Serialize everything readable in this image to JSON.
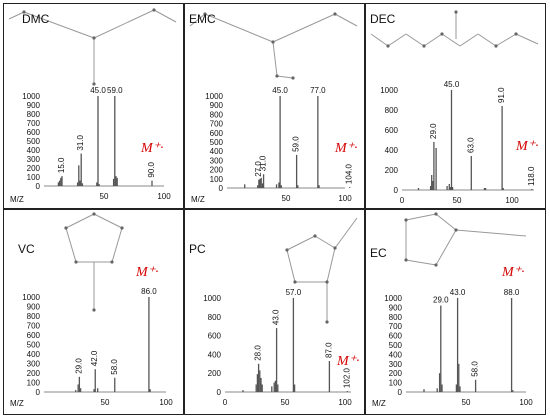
{
  "colors": {
    "bar": "#555555",
    "axis": "#888888",
    "structure": "#999999",
    "atom": "#666666",
    "mplus": "#d40000",
    "border": "#222222"
  },
  "chart_data": [
    {
      "type": "bar",
      "name": "DMC",
      "xlabel": "M/Z",
      "xlim": [
        0,
        100
      ],
      "ylim": [
        0,
        1000
      ],
      "xticks": [
        50,
        100
      ],
      "yticks": [
        0,
        100,
        200,
        300,
        400,
        500,
        600,
        700,
        800,
        900,
        1000
      ],
      "annotation": "M⁺·",
      "peaks": [
        {
          "mz": 12,
          "i": 40
        },
        {
          "mz": 13,
          "i": 60
        },
        {
          "mz": 14,
          "i": 90
        },
        {
          "mz": 15,
          "i": 110,
          "label": "15.0"
        },
        {
          "mz": 28,
          "i": 40
        },
        {
          "mz": 29,
          "i": 230
        },
        {
          "mz": 30,
          "i": 60
        },
        {
          "mz": 31,
          "i": 360,
          "label": "31.0"
        },
        {
          "mz": 32,
          "i": 30
        },
        {
          "mz": 44,
          "i": 40
        },
        {
          "mz": 45,
          "i": 1000,
          "label": "45.0"
        },
        {
          "mz": 46,
          "i": 20
        },
        {
          "mz": 58,
          "i": 80
        },
        {
          "mz": 59,
          "i": 1000,
          "label": "59.0"
        },
        {
          "mz": 60,
          "i": 110
        },
        {
          "mz": 61,
          "i": 90
        },
        {
          "mz": 90,
          "i": 60,
          "label": "90.0"
        }
      ]
    },
    {
      "type": "bar",
      "name": "EMC",
      "xlabel": "M/Z",
      "xlim": [
        0,
        100
      ],
      "ylim": [
        0,
        1000
      ],
      "xticks": [
        50,
        100
      ],
      "yticks": [
        0,
        100,
        200,
        300,
        400,
        500,
        600,
        700,
        800,
        900,
        1000
      ],
      "annotation": "M⁺·",
      "peaks": [
        {
          "mz": 15,
          "i": 40
        },
        {
          "mz": 26,
          "i": 30
        },
        {
          "mz": 27,
          "i": 90,
          "label": "27.0"
        },
        {
          "mz": 28,
          "i": 100
        },
        {
          "mz": 29,
          "i": 110
        },
        {
          "mz": 30,
          "i": 50
        },
        {
          "mz": 31,
          "i": 150,
          "label": "31.0"
        },
        {
          "mz": 42,
          "i": 40
        },
        {
          "mz": 44,
          "i": 60
        },
        {
          "mz": 45,
          "i": 1000,
          "label": "45.0"
        },
        {
          "mz": 46,
          "i": 30
        },
        {
          "mz": 59,
          "i": 360,
          "label": "59.0"
        },
        {
          "mz": 60,
          "i": 30
        },
        {
          "mz": 77,
          "i": 1000,
          "label": "77.0"
        },
        {
          "mz": 78,
          "i": 30
        },
        {
          "mz": 104,
          "i": 10,
          "label": "104.0"
        }
      ]
    },
    {
      "type": "bar",
      "name": "DEC",
      "xlabel": "",
      "xlim": [
        0,
        120
      ],
      "ylim": [
        0,
        1000
      ],
      "xticks": [
        0,
        50,
        100
      ],
      "yticks": [
        0,
        200,
        400,
        600,
        800,
        1000
      ],
      "annotation": "M⁺·",
      "peaks": [
        {
          "mz": 15,
          "i": 20
        },
        {
          "mz": 26,
          "i": 40
        },
        {
          "mz": 27,
          "i": 150
        },
        {
          "mz": 28,
          "i": 90
        },
        {
          "mz": 29,
          "i": 480,
          "label": "29.0"
        },
        {
          "mz": 31,
          "i": 420
        },
        {
          "mz": 41,
          "i": 40
        },
        {
          "mz": 43,
          "i": 60
        },
        {
          "mz": 44,
          "i": 30
        },
        {
          "mz": 45,
          "i": 1000,
          "label": "45.0"
        },
        {
          "mz": 46,
          "i": 30
        },
        {
          "mz": 63,
          "i": 340,
          "label": "63.0"
        },
        {
          "mz": 75,
          "i": 20
        },
        {
          "mz": 76,
          "i": 20
        },
        {
          "mz": 91,
          "i": 840,
          "label": "91.0"
        },
        {
          "mz": 92,
          "i": 20
        },
        {
          "mz": 118,
          "i": 10,
          "label": "118.0"
        }
      ]
    },
    {
      "type": "bar",
      "name": "VC",
      "xlabel": "M/Z",
      "xlim": [
        0,
        100
      ],
      "ylim": [
        0,
        1000
      ],
      "xticks": [
        50,
        100
      ],
      "yticks": [
        0,
        100,
        200,
        300,
        400,
        500,
        600,
        700,
        800,
        900,
        1000
      ],
      "annotation": "M⁺·",
      "peaks": [
        {
          "mz": 26,
          "i": 20
        },
        {
          "mz": 28,
          "i": 80
        },
        {
          "mz": 29,
          "i": 160,
          "label": "29.0"
        },
        {
          "mz": 30,
          "i": 40
        },
        {
          "mz": 41,
          "i": 30
        },
        {
          "mz": 42,
          "i": 240,
          "label": "42.0"
        },
        {
          "mz": 44,
          "i": 40
        },
        {
          "mz": 58,
          "i": 150,
          "label": "58.0"
        },
        {
          "mz": 86,
          "i": 1000,
          "label": "86.0"
        },
        {
          "mz": 87,
          "i": 30
        }
      ]
    },
    {
      "type": "bar",
      "name": "PC",
      "xlabel": "",
      "xlim": [
        0,
        105
      ],
      "ylim": [
        0,
        1000
      ],
      "xticks": [
        0,
        50,
        100
      ],
      "yticks": [
        0,
        200,
        400,
        600,
        800,
        1000
      ],
      "annotation": "M⁺·",
      "peaks": [
        {
          "mz": 15,
          "i": 20
        },
        {
          "mz": 26,
          "i": 80
        },
        {
          "mz": 27,
          "i": 190
        },
        {
          "mz": 28,
          "i": 300,
          "label": "28.0"
        },
        {
          "mz": 29,
          "i": 230
        },
        {
          "mz": 30,
          "i": 150
        },
        {
          "mz": 31,
          "i": 80
        },
        {
          "mz": 39,
          "i": 60
        },
        {
          "mz": 41,
          "i": 100
        },
        {
          "mz": 42,
          "i": 120
        },
        {
          "mz": 43,
          "i": 680,
          "label": "43.0"
        },
        {
          "mz": 44,
          "i": 80
        },
        {
          "mz": 57,
          "i": 1000,
          "label": "57.0"
        },
        {
          "mz": 58,
          "i": 80
        },
        {
          "mz": 87,
          "i": 330,
          "label": "87.0"
        },
        {
          "mz": 102,
          "i": 10,
          "label": "102.0"
        }
      ]
    },
    {
      "type": "bar",
      "name": "EC",
      "xlabel": "M/Z",
      "xlim": [
        0,
        100
      ],
      "ylim": [
        0,
        1000
      ],
      "xticks": [
        50,
        100
      ],
      "yticks": [
        0,
        100,
        200,
        300,
        400,
        500,
        600,
        700,
        800,
        900,
        1000
      ],
      "annotation": "M⁺·",
      "peaks": [
        {
          "mz": 15,
          "i": 30
        },
        {
          "mz": 26,
          "i": 40
        },
        {
          "mz": 28,
          "i": 200
        },
        {
          "mz": 29,
          "i": 920,
          "label": "29.0"
        },
        {
          "mz": 30,
          "i": 80
        },
        {
          "mz": 42,
          "i": 80
        },
        {
          "mz": 43,
          "i": 1000,
          "label": "43.0"
        },
        {
          "mz": 44,
          "i": 300
        },
        {
          "mz": 45,
          "i": 60
        },
        {
          "mz": 58,
          "i": 130,
          "label": "58.0"
        },
        {
          "mz": 88,
          "i": 1000,
          "label": "88.0"
        },
        {
          "mz": 89,
          "i": 20
        }
      ]
    }
  ]
}
